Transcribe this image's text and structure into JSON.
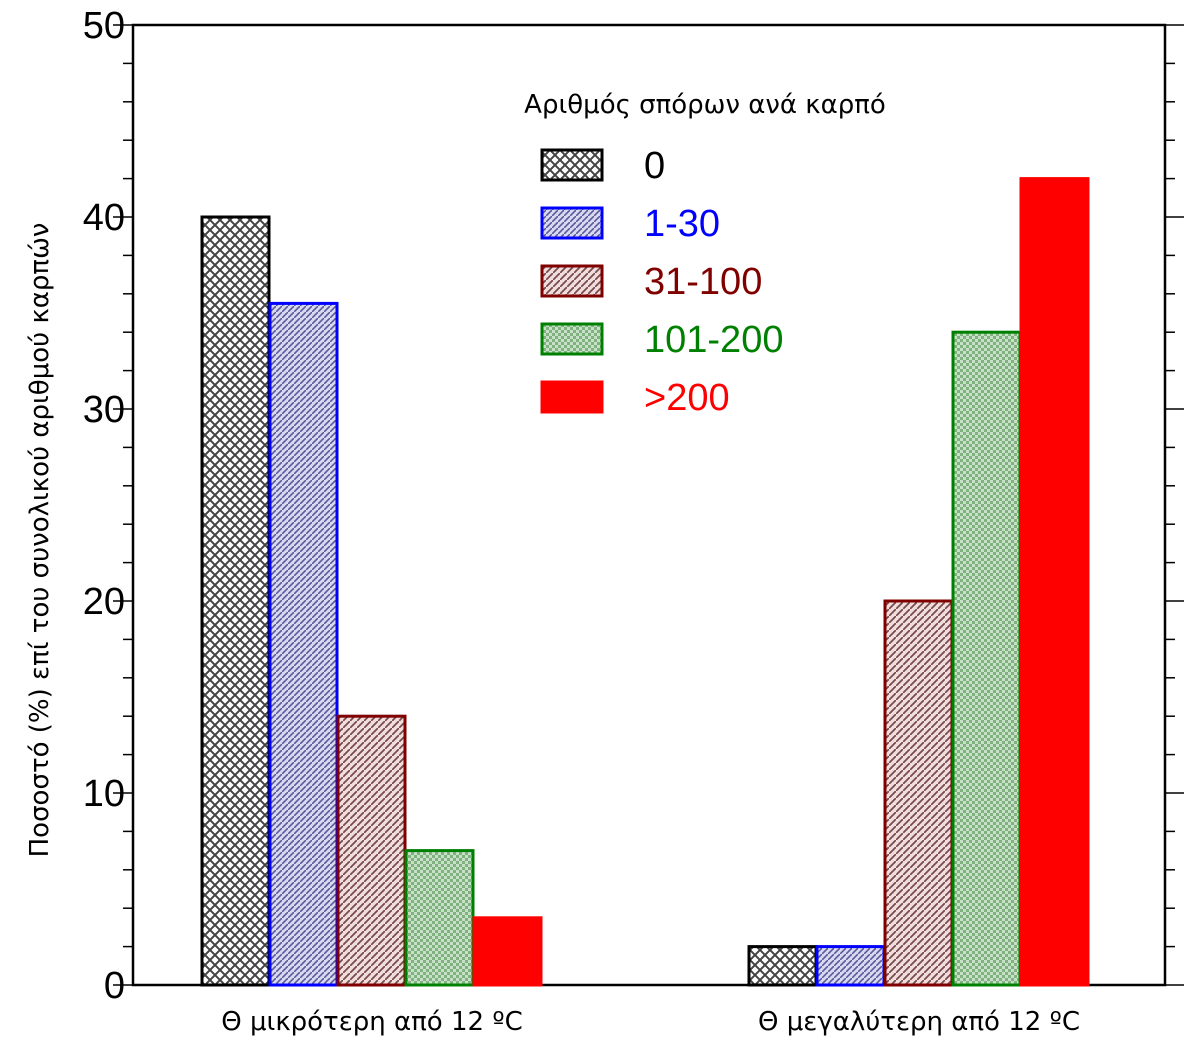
{
  "chart_data": {
    "type": "bar",
    "categories": [
      "Θ μικρότερη από 12 ºC",
      "Θ μεγαλύτερη από 12 ºC"
    ],
    "series": [
      {
        "name": "0",
        "values": [
          40,
          2
        ],
        "color": "#000000",
        "fill": "crosshatch"
      },
      {
        "name": "1-30",
        "values": [
          35.5,
          2
        ],
        "color": "#0000ff",
        "fill": "diagonal-hatch"
      },
      {
        "name": "31-100",
        "values": [
          14,
          20
        ],
        "color": "#800000",
        "fill": "diagonal-hatch"
      },
      {
        "name": "101-200",
        "values": [
          7,
          34
        ],
        "color": "#008000",
        "fill": "dotted-grid"
      },
      {
        "name": ">200",
        "values": [
          3.5,
          42
        ],
        "color": "#ff0000",
        "fill": "solid"
      }
    ],
    "title": "",
    "xlabel": "",
    "ylabel": "Ποσοστό (%) επί του συνολικού αριθμού καρπών",
    "ylim": [
      0,
      50
    ],
    "yticks": [
      0,
      10,
      20,
      30,
      40,
      50
    ],
    "grid": false,
    "legend": {
      "title": "Αριθμός σπόρων ανά καρπό",
      "placement": "top-center"
    }
  }
}
